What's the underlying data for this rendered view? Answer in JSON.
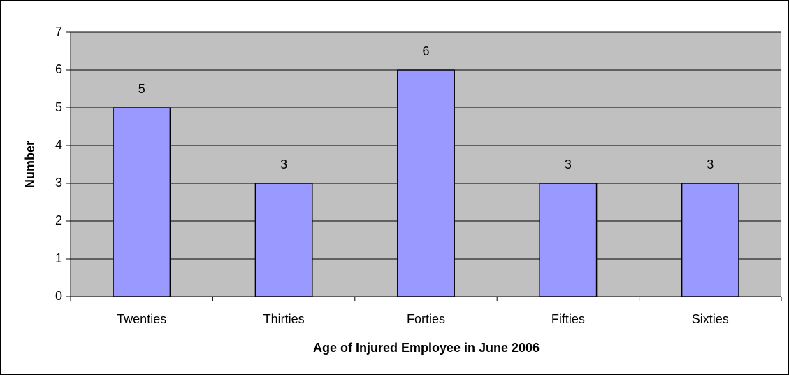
{
  "chart_data": {
    "type": "bar",
    "categories": [
      "Twenties",
      "Thirties",
      "Forties",
      "Fifties",
      "Sixties"
    ],
    "values": [
      5,
      3,
      6,
      3,
      3
    ],
    "color": "#9999ff",
    "ylim": [
      0,
      7
    ],
    "yticks": [
      0,
      1,
      2,
      3,
      4,
      5,
      6,
      7
    ],
    "grid": true,
    "xlabel": "Age of Injured Employee in June 2006",
    "ylabel": "Number"
  }
}
